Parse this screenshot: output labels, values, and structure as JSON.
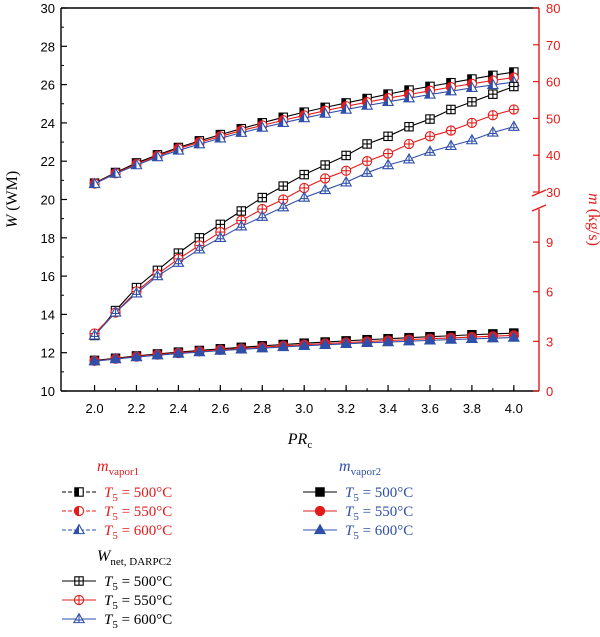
{
  "colors": {
    "black": "#000000",
    "red": "#e41b1b",
    "blue": "#2f4fa8"
  },
  "chart_data": {
    "type": "line",
    "x": [
      2.0,
      2.1,
      2.2,
      2.3,
      2.4,
      2.5,
      2.6,
      2.7,
      2.8,
      2.9,
      3.0,
      3.1,
      3.2,
      3.3,
      3.4,
      3.5,
      3.6,
      3.7,
      3.8,
      3.9,
      4.0
    ],
    "x_tick_labels": [
      "2.0",
      "2.2",
      "2.4",
      "2.6",
      "2.8",
      "3.0",
      "3.2",
      "3.4",
      "3.6",
      "3.8",
      "4.0"
    ],
    "xlabel": {
      "main": "PR",
      "sub": "c"
    },
    "xlim": [
      1.84,
      4.12
    ],
    "left_axis": {
      "label": "W (WM)",
      "ylim": [
        10,
        30
      ],
      "ticks": [
        "10",
        "12",
        "14",
        "16",
        "18",
        "20",
        "22",
        "24",
        "26",
        "28",
        "30"
      ]
    },
    "right_axis": {
      "label": "m (kg/s)",
      "lower_ticks": [
        "0",
        "3",
        "6",
        "9"
      ],
      "upper_ticks": [
        "30",
        "40",
        "50",
        "60",
        "70",
        "80"
      ],
      "upper_range": [
        30,
        80
      ],
      "lower_range": [
        0,
        11
      ],
      "break": true
    },
    "series": [
      {
        "axis": "right",
        "group": "mvapor1",
        "T5": "500",
        "marker": "half-square",
        "color": "black",
        "values": [
          32.4,
          35.3,
          37.9,
          40.1,
          42.1,
          43.9,
          45.6,
          47.2,
          48.8,
          50.3,
          51.7,
          53.0,
          54.2,
          55.4,
          56.6,
          57.7,
          58.7,
          59.7,
          60.7,
          61.7,
          62.6
        ]
      },
      {
        "axis": "right",
        "group": "mvapor1",
        "T5": "550",
        "marker": "half-circle",
        "color": "red",
        "values": [
          32.3,
          35.1,
          37.6,
          39.8,
          41.8,
          43.5,
          45.1,
          46.7,
          48.1,
          49.5,
          50.8,
          52.1,
          53.3,
          54.4,
          55.5,
          56.5,
          57.5,
          58.5,
          59.4,
          60.3,
          61.1
        ]
      },
      {
        "axis": "right",
        "group": "mvapor1",
        "T5": "600",
        "marker": "half-triangle",
        "color": "blue",
        "values": [
          32.2,
          35.0,
          37.3,
          39.5,
          41.3,
          43.0,
          44.6,
          46.1,
          47.5,
          48.8,
          50.1,
          51.3,
          52.4,
          53.5,
          54.5,
          55.5,
          56.5,
          57.4,
          58.3,
          59.1,
          59.9
        ]
      },
      {
        "axis": "right",
        "group": "mvapor2",
        "T5": "500",
        "marker": "square",
        "color": "black",
        "values": [
          1.85,
          1.98,
          2.12,
          2.24,
          2.35,
          2.45,
          2.55,
          2.64,
          2.73,
          2.81,
          2.89,
          2.96,
          3.03,
          3.1,
          3.16,
          3.22,
          3.28,
          3.34,
          3.4,
          3.45,
          3.5
        ]
      },
      {
        "axis": "right",
        "group": "mvapor2",
        "T5": "550",
        "marker": "circle",
        "color": "red",
        "values": [
          1.82,
          1.95,
          2.08,
          2.2,
          2.3,
          2.4,
          2.49,
          2.57,
          2.65,
          2.73,
          2.8,
          2.87,
          2.93,
          2.99,
          3.05,
          3.11,
          3.16,
          3.21,
          3.26,
          3.31,
          3.36
        ]
      },
      {
        "axis": "right",
        "group": "mvapor2",
        "T5": "600",
        "marker": "triangle",
        "color": "blue",
        "values": [
          1.8,
          1.93,
          2.05,
          2.16,
          2.26,
          2.35,
          2.44,
          2.52,
          2.59,
          2.66,
          2.73,
          2.79,
          2.85,
          2.91,
          2.96,
          3.01,
          3.06,
          3.11,
          3.15,
          3.19,
          3.23
        ]
      },
      {
        "axis": "left",
        "group": "Wnet",
        "T5": "500",
        "marker": "square-plus",
        "color": "black",
        "values": [
          12.9,
          14.2,
          15.4,
          16.3,
          17.2,
          18.0,
          18.7,
          19.4,
          20.1,
          20.7,
          21.3,
          21.8,
          22.3,
          22.9,
          23.3,
          23.8,
          24.2,
          24.7,
          25.1,
          25.5,
          25.9
        ]
      },
      {
        "axis": "left",
        "group": "Wnet",
        "T5": "550",
        "marker": "circle-plus",
        "color": "red",
        "values": [
          13.0,
          14.1,
          15.2,
          16.1,
          16.9,
          17.6,
          18.3,
          18.9,
          19.5,
          20.0,
          20.6,
          21.1,
          21.5,
          22.0,
          22.4,
          22.9,
          23.3,
          23.6,
          24.0,
          24.4,
          24.7
        ]
      },
      {
        "axis": "left",
        "group": "Wnet",
        "T5": "600",
        "marker": "triangle-plus",
        "color": "blue",
        "values": [
          12.9,
          14.1,
          15.1,
          16.0,
          16.7,
          17.4,
          18.0,
          18.6,
          19.1,
          19.6,
          20.1,
          20.5,
          20.9,
          21.4,
          21.8,
          22.1,
          22.5,
          22.8,
          23.1,
          23.5,
          23.8
        ]
      }
    ]
  },
  "legend": {
    "group1": {
      "title_main": "m",
      "title_sub": "vapor1",
      "items": [
        {
          "label_main": "T",
          "label_sub": "5",
          "label_rest": " = 500°C"
        },
        {
          "label_main": "T",
          "label_sub": "5",
          "label_rest": " = 550°C"
        },
        {
          "label_main": "T",
          "label_sub": "5",
          "label_rest": " = 600°C"
        }
      ]
    },
    "group2": {
      "title_main": "m",
      "title_sub": "vapor2",
      "items": [
        {
          "label_main": "T",
          "label_sub": "5",
          "label_rest": " = 500°C"
        },
        {
          "label_main": "T",
          "label_sub": "5",
          "label_rest": " = 550°C"
        },
        {
          "label_main": "T",
          "label_sub": "5",
          "label_rest": " = 600°C"
        }
      ]
    },
    "group3": {
      "title_main": "W",
      "title_sub": "net, DARPC2",
      "items": [
        {
          "label_main": "T",
          "label_sub": "5",
          "label_rest": " = 500°C"
        },
        {
          "label_main": "T",
          "label_sub": "5",
          "label_rest": " = 550°C"
        },
        {
          "label_main": "T",
          "label_sub": "5",
          "label_rest": " = 600°C"
        }
      ]
    }
  }
}
